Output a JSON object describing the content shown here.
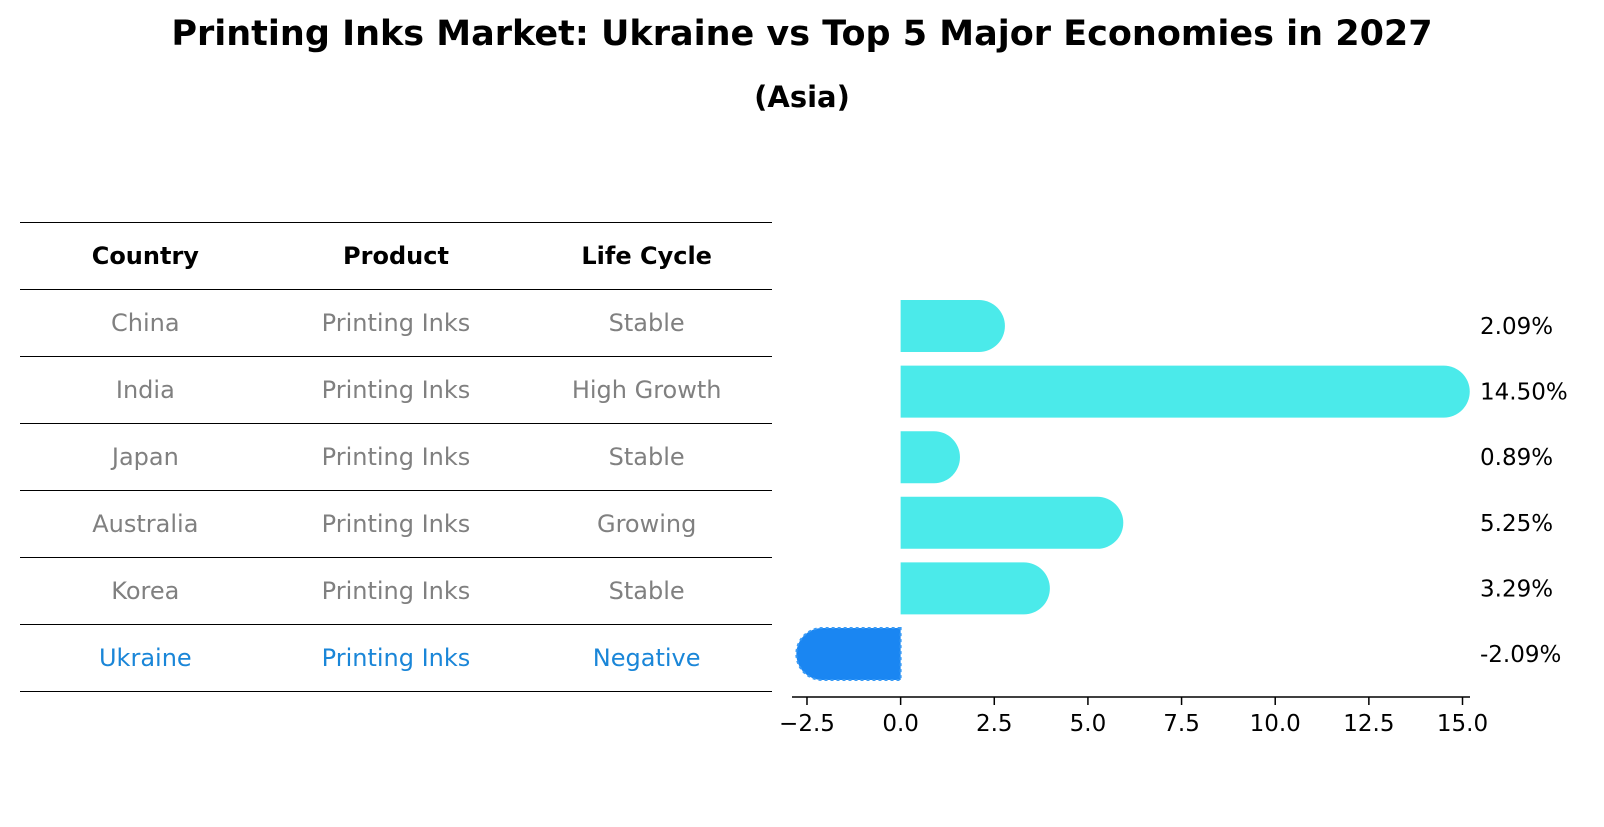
{
  "title": "Printing Inks Market: Ukraine vs Top 5 Major Economies in 2027",
  "subtitle": "(Asia)",
  "table": {
    "headers": [
      "Country",
      "Product",
      "Life Cycle"
    ],
    "rows": [
      {
        "country": "China",
        "product": "Printing Inks",
        "life_cycle": "Stable"
      },
      {
        "country": "India",
        "product": "Printing Inks",
        "life_cycle": "High Growth"
      },
      {
        "country": "Japan",
        "product": "Printing Inks",
        "life_cycle": "Stable"
      },
      {
        "country": "Australia",
        "product": "Printing Inks",
        "life_cycle": "Growing"
      },
      {
        "country": "Korea",
        "product": "Printing Inks",
        "life_cycle": "Stable"
      },
      {
        "country": "Ukraine",
        "product": "Printing Inks",
        "life_cycle": "Negative",
        "highlight": true
      }
    ]
  },
  "colors": {
    "bar_default": "#4beaea",
    "bar_highlight": "#1a86f2",
    "text_highlight": "#1a86d8",
    "text_muted": "#808080"
  },
  "chart_data": {
    "type": "bar",
    "orientation": "horizontal",
    "title": "Printing Inks Market: Ukraine vs Top 5 Major Economies in 2027",
    "subtitle": "(Asia)",
    "categories": [
      "China",
      "India",
      "Japan",
      "Australia",
      "Korea",
      "Ukraine"
    ],
    "values": [
      2.09,
      14.5,
      0.89,
      5.25,
      3.29,
      -2.09
    ],
    "value_labels": [
      "2.09%",
      "14.50%",
      "0.89%",
      "5.25%",
      "3.29%",
      "-2.09%"
    ],
    "highlight": "Ukraine",
    "xlim": [
      -2.9,
      15.2
    ],
    "xticks": [
      -2.5,
      0.0,
      2.5,
      5.0,
      7.5,
      10.0,
      12.5,
      15.0
    ],
    "xtick_labels": [
      "−2.5",
      "0.0",
      "2.5",
      "5.0",
      "7.5",
      "10.0",
      "12.5",
      "15.0"
    ],
    "xlabel": "",
    "ylabel": "",
    "grid": false
  }
}
